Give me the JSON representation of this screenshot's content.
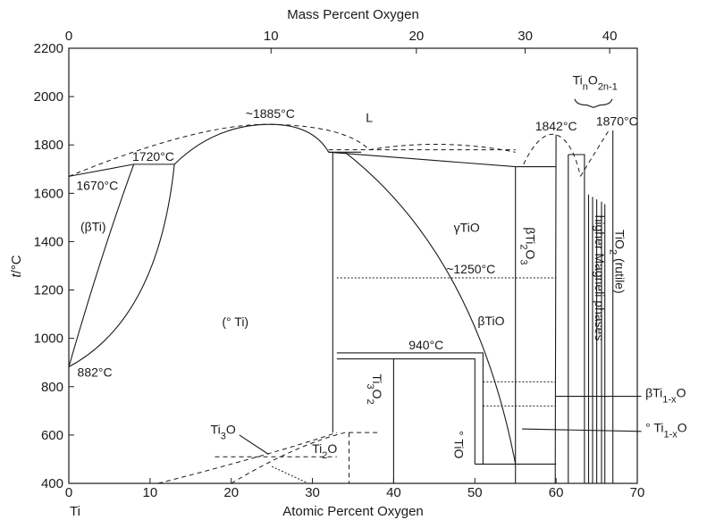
{
  "chart_data": {
    "type": "phase-diagram",
    "title": "Mass Percent Oxygen",
    "xlabel": "Atomic Percent Oxygen",
    "ylabel": "t/°C",
    "x_left_label": "Ti",
    "xlim": [
      0,
      70
    ],
    "ylim": [
      400,
      2200
    ],
    "x_ticks": [
      0,
      10,
      20,
      30,
      40,
      50,
      60,
      70
    ],
    "y_ticks": [
      400,
      600,
      800,
      1000,
      1200,
      1400,
      1600,
      1800,
      2000,
      2200
    ],
    "top_axis": {
      "label": "Mass Percent Oxygen",
      "ticks": [
        {
          "mass": 0,
          "at": 0
        },
        {
          "mass": 10,
          "at": 24.9
        },
        {
          "mass": 20,
          "at": 42.8
        },
        {
          "mass": 30,
          "at": 56.2
        },
        {
          "mass": 40,
          "at": 66.6
        }
      ]
    },
    "phases": [
      {
        "name": "L",
        "x": 37,
        "t": 1895
      },
      {
        "name": "(βTi)",
        "x": 3,
        "t": 1445
      },
      {
        "name": "(° Ti)",
        "x": 20.5,
        "t": 1050
      },
      {
        "name": "γTiO",
        "x": 49,
        "t": 1440
      },
      {
        "name": "βTiO",
        "x": 52,
        "t": 1055
      },
      {
        "name": "Ti3O2",
        "x": 37.5,
        "t": 730
      },
      {
        "name": "Ti2O",
        "x": 31.5,
        "t": 525
      },
      {
        "name": "° TiO",
        "x": 48,
        "t": 620
      },
      {
        "name": "βTi2O3",
        "x": 58,
        "t": 1560
      },
      {
        "name": "higher Magneli phases",
        "x": 63.7,
        "t": 1250
      },
      {
        "name": "TiO2 (rutile)",
        "x": 67.4,
        "t": 1350
      }
    ],
    "annotations": [
      {
        "text": "~1885°C",
        "x": 24.8,
        "t": 1885
      },
      {
        "text": "1720°C",
        "x": 10.5,
        "t": 1720
      },
      {
        "text": "1670°C",
        "x": 0,
        "t": 1670
      },
      {
        "text": "882°C",
        "x": 0,
        "t": 882
      },
      {
        "text": "~1250°C",
        "x": 49,
        "t": 1250
      },
      {
        "text": "940°C",
        "x": 44,
        "t": 940
      },
      {
        "text": "1842°C",
        "x": 60,
        "t": 1842
      },
      {
        "text": "1870°C",
        "x": 67,
        "t": 1870
      },
      {
        "text": "TinO2n-1",
        "x": 64.5,
        "t": 2045
      },
      {
        "text": "Ti3O",
        "x": 25,
        "t": 620
      },
      {
        "text": "βTi1-xO",
        "x": 55.5,
        "t": 760
      },
      {
        "text": "° Ti1-xO",
        "x": 55.8,
        "t": 625
      }
    ],
    "invariant_temperatures": [
      {
        "t": 1720,
        "from": 0,
        "to": 13
      },
      {
        "t": 1770,
        "from": 32,
        "to": 36
      },
      {
        "t": 1250,
        "from": 33,
        "to": 60
      },
      {
        "t": 940,
        "from": 33,
        "to": 51
      },
      {
        "t": 1710,
        "from": 55,
        "to": 60
      }
    ]
  }
}
